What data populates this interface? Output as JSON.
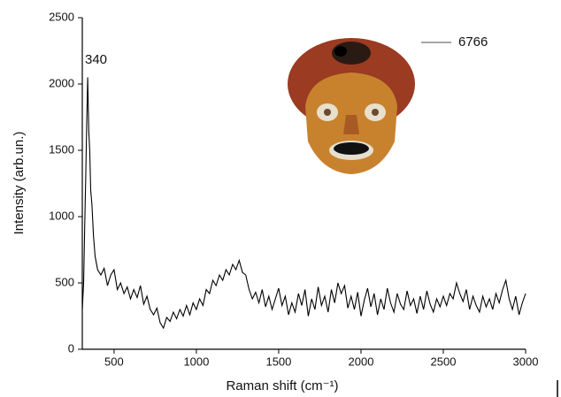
{
  "chart_data": {
    "type": "line",
    "x_label": "Raman shift (cm⁻¹)",
    "y_label": "Intensity (arb.un.)",
    "annotation": "340",
    "xlim": [
      307,
      3000
    ],
    "ylim": [
      0,
      2500
    ],
    "xticks": [
      500,
      1000,
      1500,
      2000,
      2500,
      3000
    ],
    "yticks": [
      0,
      500,
      1000,
      1500,
      2000,
      2500
    ],
    "legend": "upper right",
    "x": [
      307,
      315,
      322,
      328,
      334,
      340,
      346,
      352,
      358,
      365,
      375,
      385,
      400,
      420,
      440,
      460,
      480,
      500,
      520,
      540,
      560,
      580,
      600,
      620,
      640,
      660,
      680,
      700,
      720,
      740,
      760,
      780,
      800,
      820,
      840,
      860,
      880,
      900,
      920,
      940,
      960,
      980,
      1000,
      1020,
      1040,
      1060,
      1080,
      1100,
      1120,
      1140,
      1160,
      1180,
      1200,
      1220,
      1240,
      1260,
      1280,
      1300,
      1320,
      1340,
      1360,
      1380,
      1400,
      1420,
      1440,
      1460,
      1480,
      1500,
      1520,
      1540,
      1560,
      1580,
      1600,
      1620,
      1640,
      1660,
      1680,
      1700,
      1720,
      1740,
      1760,
      1780,
      1800,
      1820,
      1840,
      1860,
      1880,
      1900,
      1920,
      1940,
      1960,
      1980,
      2000,
      2020,
      2040,
      2060,
      2080,
      2100,
      2120,
      2140,
      2160,
      2180,
      2200,
      2220,
      2240,
      2260,
      2280,
      2300,
      2320,
      2340,
      2360,
      2380,
      2400,
      2420,
      2440,
      2460,
      2480,
      2500,
      2520,
      2540,
      2560,
      2580,
      2600,
      2620,
      2640,
      2660,
      2680,
      2700,
      2720,
      2740,
      2760,
      2780,
      2800,
      2820,
      2840,
      2860,
      2880,
      2900,
      2920,
      2940,
      2960,
      2980,
      3000
    ],
    "series": [
      {
        "name": "6766",
        "color": "#000000",
        "legend_color": "#888888",
        "values": [
          300,
          500,
          950,
          1300,
          1700,
          2050,
          1650,
          1500,
          1200,
          1100,
          850,
          700,
          600,
          560,
          610,
          480,
          560,
          600,
          450,
          500,
          420,
          470,
          380,
          450,
          390,
          480,
          340,
          400,
          300,
          260,
          310,
          200,
          160,
          240,
          210,
          280,
          230,
          300,
          250,
          330,
          260,
          350,
          300,
          380,
          330,
          450,
          420,
          520,
          480,
          560,
          520,
          600,
          560,
          640,
          600,
          670,
          580,
          560,
          450,
          380,
          430,
          350,
          450,
          320,
          400,
          300,
          380,
          460,
          330,
          400,
          260,
          350,
          280,
          420,
          330,
          450,
          250,
          380,
          300,
          470,
          330,
          400,
          280,
          450,
          350,
          500,
          420,
          480,
          310,
          400,
          300,
          430,
          250,
          370,
          460,
          320,
          420,
          260,
          380,
          300,
          460,
          350,
          280,
          420,
          340,
          300,
          440,
          330,
          380,
          270,
          400,
          300,
          440,
          340,
          280,
          380,
          320,
          400,
          330,
          420,
          380,
          500,
          420,
          360,
          450,
          300,
          400,
          330,
          280,
          400,
          320,
          380,
          300,
          420,
          350,
          450,
          520,
          380,
          300,
          400,
          260,
          350,
          420
        ]
      }
    ]
  }
}
